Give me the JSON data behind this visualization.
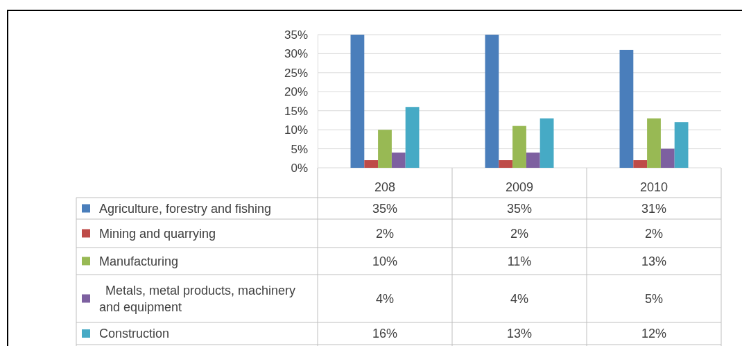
{
  "chart_data": {
    "type": "bar",
    "categories": [
      "208",
      "2009",
      "2010"
    ],
    "series": [
      {
        "name": "Agriculture, forestry and fishing",
        "color": "#4a7ebb",
        "values": [
          35,
          35,
          31
        ],
        "value_labels": [
          "35%",
          "35%",
          "31%"
        ]
      },
      {
        "name": "Mining and quarrying",
        "color": "#be4b48",
        "values": [
          2,
          2,
          2
        ],
        "value_labels": [
          "2%",
          "2%",
          "2%"
        ]
      },
      {
        "name": "Manufacturing",
        "color": "#98b954",
        "values": [
          10,
          11,
          13
        ],
        "value_labels": [
          "10%",
          "11%",
          "13%"
        ]
      },
      {
        "name": "Metals, metal products, machinery and equipment",
        "color": "#7d60a0",
        "values": [
          4,
          4,
          5
        ],
        "value_labels": [
          "4%",
          "4%",
          "5%"
        ]
      },
      {
        "name": "Construction",
        "color": "#46aac5",
        "values": [
          16,
          13,
          12
        ],
        "value_labels": [
          "16%",
          "13%",
          "12%"
        ]
      }
    ],
    "ylim": [
      0,
      35
    ],
    "yticks": [
      {
        "value": 0,
        "label": "0%"
      },
      {
        "value": 5,
        "label": "5%"
      },
      {
        "value": 10,
        "label": "10%"
      },
      {
        "value": 15,
        "label": "15%"
      },
      {
        "value": 20,
        "label": "20%"
      },
      {
        "value": 25,
        "label": "25%"
      },
      {
        "value": 30,
        "label": "30%"
      },
      {
        "value": 35,
        "label": "35%"
      }
    ],
    "grid": "y",
    "legend": "bottom"
  }
}
